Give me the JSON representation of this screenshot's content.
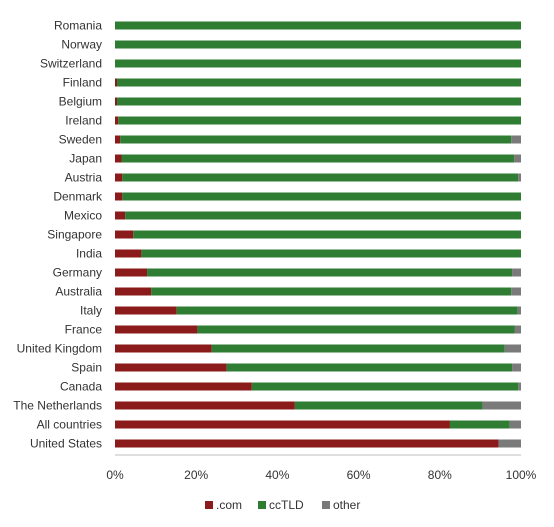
{
  "chart_data": {
    "type": "bar",
    "orientation": "horizontal",
    "stacked": "percent",
    "categories": [
      "Romania",
      "Norway",
      "Switzerland",
      "Finland",
      "Belgium",
      "Ireland",
      "Sweden",
      "Japan",
      "Austria",
      "Denmark",
      "Mexico",
      "Singapore",
      "India",
      "Germany",
      "Australia",
      "Italy",
      "France",
      "United Kingdom",
      "Spain",
      "Canada",
      "The Netherlands",
      "All countries",
      "United States"
    ],
    "series": [
      {
        "name": ".com",
        "color": "#8b1a1a",
        "values": [
          0,
          0,
          0,
          0.5,
          0.5,
          0.8,
          1.3,
          1.6,
          1.8,
          1.8,
          2.5,
          4.5,
          6.5,
          7.9,
          8.9,
          15.2,
          20.3,
          23.8,
          27.5,
          33.7,
          44.3,
          82.5,
          94.5
        ]
      },
      {
        "name": "ccTLD",
        "color": "#2e7d32",
        "values": [
          100,
          100,
          100,
          99.5,
          99.5,
          99.2,
          96.3,
          96.7,
          97.5,
          98.2,
          97.5,
          95.5,
          93.5,
          89.9,
          88.7,
          84.0,
          78.1,
          72.2,
          70.3,
          65.6,
          46.2,
          14.7,
          0
        ]
      },
      {
        "name": "other",
        "color": "#7a7a7a",
        "values": [
          0,
          0,
          0,
          0,
          0,
          0,
          2.4,
          1.7,
          0.7,
          0,
          0,
          0,
          0,
          2.2,
          2.4,
          0.8,
          1.6,
          4.0,
          2.2,
          0.7,
          9.5,
          2.8,
          5.5
        ]
      }
    ],
    "x_ticks": [
      "0%",
      "20%",
      "40%",
      "60%",
      "80%",
      "100%"
    ],
    "xlim": [
      0,
      100
    ],
    "legend_position": "bottom",
    "grid": false
  }
}
